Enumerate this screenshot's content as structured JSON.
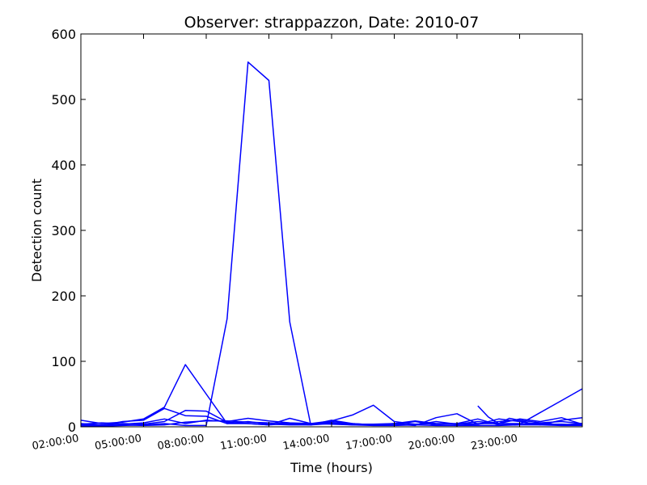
{
  "chart_data": {
    "type": "line",
    "title": "Observer: strappazzon, Date: 2010-07",
    "xlabel": "Time (hours)",
    "ylabel": "Detection count",
    "xlim": [
      2,
      26
    ],
    "ylim": [
      0,
      600
    ],
    "yticks": [
      0,
      100,
      200,
      300,
      400,
      500,
      600
    ],
    "xticks": [
      {
        "value": 2,
        "label": "02:00:00"
      },
      {
        "value": 5,
        "label": "05:00:00"
      },
      {
        "value": 8,
        "label": "08:00:00"
      },
      {
        "value": 11,
        "label": "11:00:00"
      },
      {
        "value": 14,
        "label": "14:00:00"
      },
      {
        "value": 17,
        "label": "17:00:00"
      },
      {
        "value": 20,
        "label": "20:00:00"
      },
      {
        "value": 23,
        "label": "23:00:00"
      }
    ],
    "grid": false,
    "line_color": "#0000ff",
    "series": [
      {
        "x": [
          2,
          3,
          4,
          5,
          6,
          7,
          8,
          9,
          10,
          11,
          12,
          13,
          14,
          15,
          16,
          17,
          18,
          19,
          20,
          21,
          22,
          23,
          24,
          25,
          26
        ],
        "y": [
          2,
          1,
          2,
          3,
          5,
          2,
          2,
          165,
          557,
          529,
          160,
          3,
          5,
          3,
          2,
          2,
          3,
          2,
          2,
          2,
          2,
          3,
          3,
          2,
          2
        ]
      },
      {
        "x": [
          2,
          3,
          4,
          5,
          6,
          7,
          8,
          9,
          10,
          11,
          12,
          13,
          14,
          15,
          16,
          17,
          18,
          19,
          20,
          21,
          22,
          23,
          24,
          25,
          26
        ],
        "y": [
          10,
          5,
          7,
          12,
          30,
          95,
          50,
          5,
          5,
          3,
          5,
          3,
          8,
          5,
          3,
          4,
          8,
          3,
          2,
          4,
          8,
          10,
          6,
          3,
          5
        ]
      },
      {
        "x": [
          2,
          3,
          4,
          5,
          6,
          7,
          8,
          9,
          10,
          11,
          12,
          13,
          14,
          15,
          16,
          17,
          18,
          19,
          20,
          21,
          22,
          23,
          24,
          25,
          26
        ],
        "y": [
          5,
          3,
          5,
          4,
          8,
          25,
          24,
          7,
          5,
          3,
          13,
          5,
          6,
          4,
          4,
          5,
          3,
          8,
          4,
          8,
          5,
          12,
          8,
          14,
          4
        ]
      },
      {
        "x": [
          2,
          3,
          4,
          5,
          6,
          7,
          8,
          9,
          10,
          11,
          12,
          13,
          14,
          15,
          16,
          17,
          18,
          19,
          20,
          21,
          22,
          23,
          24,
          25,
          26
        ],
        "y": [
          3,
          2,
          8,
          10,
          28,
          17,
          16,
          5,
          8,
          4,
          3,
          3,
          10,
          5,
          3,
          4,
          2,
          14,
          20,
          4,
          12,
          8,
          3,
          10,
          14
        ]
      },
      {
        "x": [
          2,
          3,
          4,
          5,
          6,
          7,
          8,
          9,
          10,
          11,
          12,
          13,
          14,
          15,
          16,
          17,
          18,
          19,
          20,
          21,
          22,
          23,
          24,
          25,
          26
        ],
        "y": [
          4,
          6,
          4,
          6,
          12,
          5,
          10,
          8,
          13,
          9,
          6,
          5,
          9,
          18,
          33,
          8,
          4,
          5,
          5,
          12,
          3,
          4,
          22,
          40,
          58
        ]
      },
      {
        "x": [
          2,
          3,
          4,
          5,
          6,
          7,
          8,
          9,
          10,
          11,
          12,
          13,
          14,
          15,
          16,
          17,
          18,
          19,
          20,
          21,
          22,
          23,
          24,
          25,
          26
        ],
        "y": [
          1,
          2,
          3,
          2,
          3,
          7,
          9,
          9,
          7,
          6,
          5,
          5,
          4,
          3,
          3,
          5,
          9,
          5,
          4,
          5,
          5,
          5,
          4,
          4,
          3
        ]
      },
      {
        "x": [
          21,
          21.5,
          22,
          22.5,
          23,
          23.5,
          24,
          25,
          26
        ],
        "y": [
          32,
          15,
          5,
          13,
          10,
          5,
          6,
          8,
          5
        ]
      }
    ]
  }
}
